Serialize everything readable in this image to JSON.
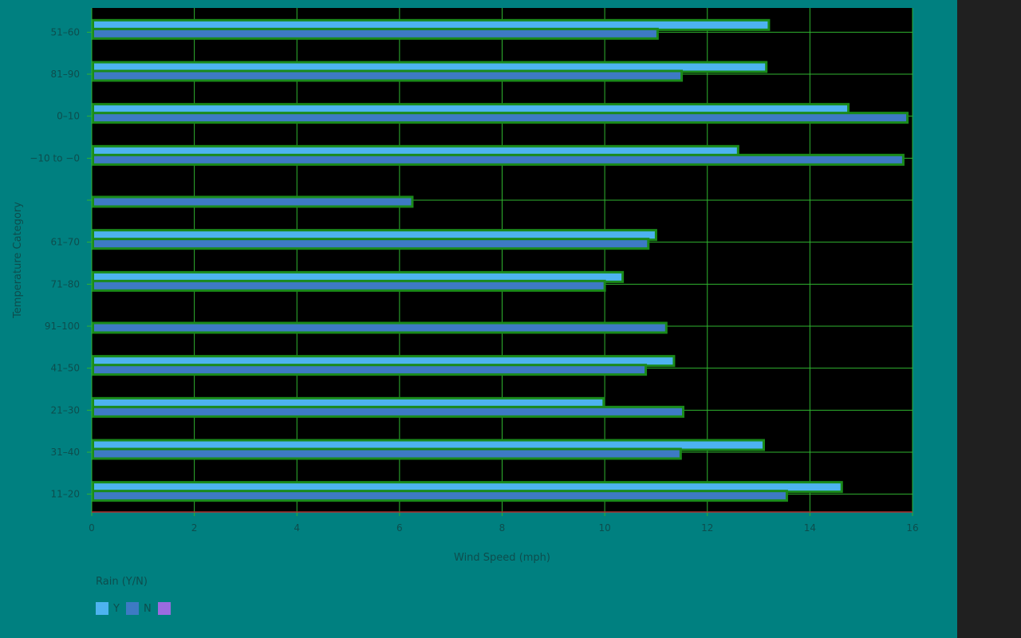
{
  "chart_data": {
    "type": "bar",
    "orientation": "horizontal",
    "title": "",
    "xlabel": "Wind Speed (mph)",
    "ylabel": "Temperature Category",
    "xlim": [
      0,
      16
    ],
    "xticks": [
      "0",
      "2",
      "4",
      "6",
      "8",
      "10",
      "12",
      "14",
      "16"
    ],
    "categories": [
      "51–60",
      "81–90",
      "0–10",
      "−10 to −0",
      "",
      "61–70",
      "71–80",
      "91–100",
      "41–50",
      "21–30",
      "31–40",
      "11–20"
    ],
    "series": [
      {
        "name": "Y",
        "values": [
          13.2,
          13.15,
          14.75,
          12.6,
          null,
          11.0,
          10.35,
          null,
          11.35,
          9.98,
          13.1,
          14.62
        ]
      },
      {
        "name": "N",
        "values": [
          11.03,
          11.5,
          15.9,
          15.82,
          6.25,
          10.85,
          10.0,
          11.2,
          10.8,
          11.53,
          11.48,
          13.55
        ]
      }
    ],
    "legend": {
      "title": "Rain (Y/N)",
      "position": "bottom-left",
      "items": [
        {
          "label": "Y",
          "color": "#4db3f0"
        },
        {
          "label": "N",
          "color": "#3d7ac4"
        },
        {
          "label": "",
          "color": "#9b6be0"
        }
      ]
    },
    "grid": true,
    "colors": {
      "plot_bg": "#000000",
      "grid": "#2fb52f",
      "bar_stroke": "#1a8a1a",
      "axis": "#b03030",
      "page_bg": "#008080"
    }
  }
}
